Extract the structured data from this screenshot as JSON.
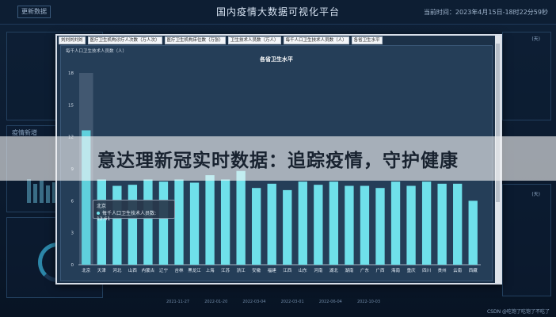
{
  "dashboard": {
    "update_button": "更新数据",
    "title": "国内疫情大数据可视化平台",
    "datetime": "当前时间：2023年4月15日-18时22分59秒",
    "left_panel_title": "疫情新增",
    "right_legend": [
      "(天)",
      "(天)"
    ],
    "bottom_ticks": [
      "2021-11-27",
      "2022-01-20",
      "2022-03-04",
      "2022-03-01",
      "2022-06-04",
      "2022-10-03"
    ],
    "csdn": "CSDN @吃饱了吃饱了不吃了"
  },
  "toolbar": {
    "buttons": [
      "刘刘刘刘刘",
      "医疗卫生机构诊疗人次数（万人次）",
      "医疗卫生机构床位数（万张）",
      "卫生技术人员数（万人）",
      "每千人口卫生技术人员数（人）",
      "各省卫生水平"
    ]
  },
  "chart": {
    "ylabel": "每千人口卫生技术人员数（人）",
    "title": "各省卫生水平",
    "tooltip_title": "北京",
    "tooltip_text": "每千人口卫生技术人员数: 12.61"
  },
  "headline": "意达理新冠实时数据：追踪疫情，守护健康",
  "chart_data": {
    "type": "bar",
    "title": "各省卫生水平",
    "ylabel": "每千人口卫生技术人员数（人）",
    "ylim": [
      0,
      18
    ],
    "yticks": [
      0,
      3,
      6,
      9,
      12,
      15,
      18
    ],
    "categories": [
      "北京",
      "天津",
      "河北",
      "山西",
      "内蒙古",
      "辽宁",
      "吉林",
      "黑龙江",
      "上海",
      "江苏",
      "浙江",
      "安徽",
      "福建",
      "江西",
      "山东",
      "河南",
      "湖北",
      "湖南",
      "广东",
      "广西",
      "海南",
      "重庆",
      "四川",
      "贵州",
      "云南",
      "西藏"
    ],
    "values": [
      12.61,
      8.0,
      7.4,
      7.5,
      8.0,
      7.8,
      8.0,
      7.7,
      8.4,
      8.0,
      8.8,
      7.2,
      7.6,
      7.0,
      7.8,
      7.5,
      7.8,
      7.4,
      7.4,
      7.2,
      7.8,
      7.4,
      7.8,
      7.6,
      7.6,
      6.0
    ],
    "highlight": "北京",
    "bar_color": "#6fe0ea",
    "highlight_color": "#5fd0dc",
    "grid": false
  }
}
